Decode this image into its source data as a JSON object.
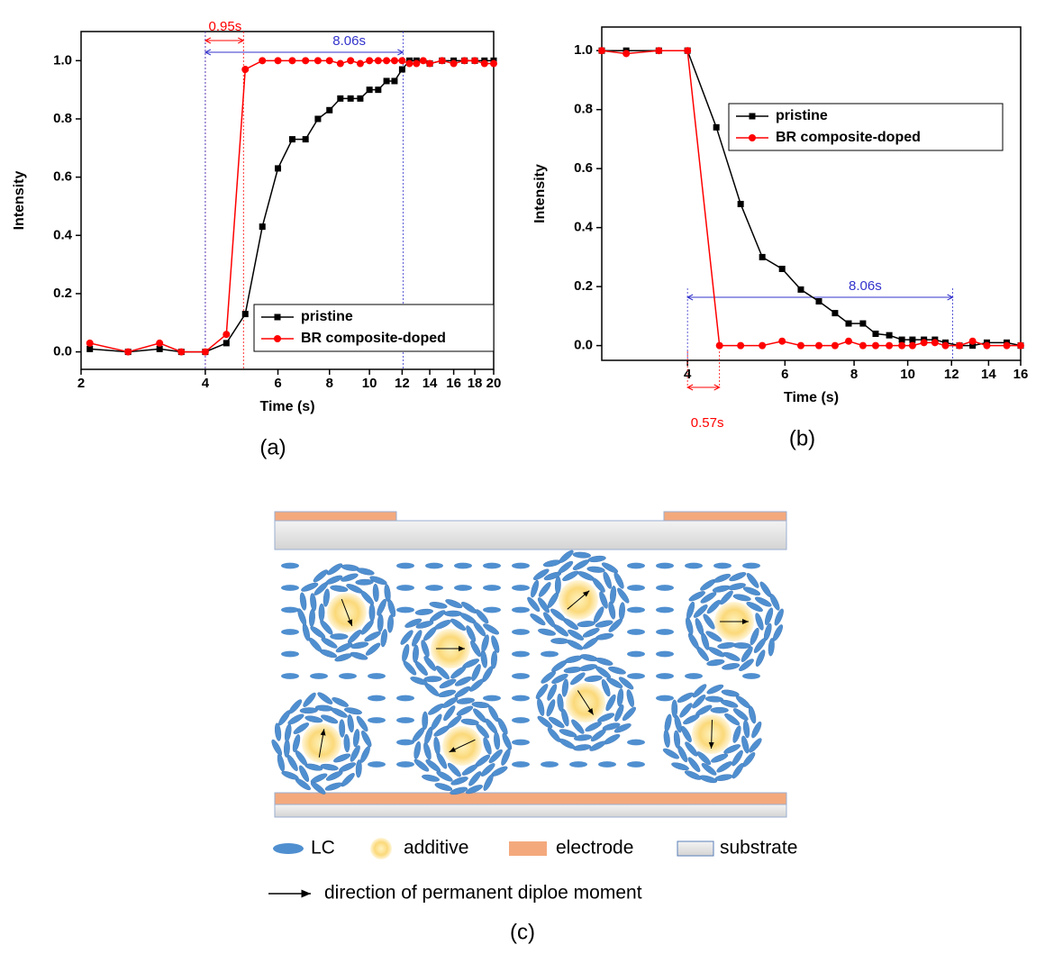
{
  "chart_data": [
    {
      "type": "line",
      "caption": "(a)",
      "xlabel": "Time (s)",
      "ylabel": "Intensity",
      "xscale": "log",
      "xlim": [
        2,
        20
      ],
      "xticks": [
        2,
        4,
        6,
        8,
        10,
        12,
        14,
        16,
        18,
        20
      ],
      "ylim": [
        -0.06,
        1.1
      ],
      "yticks": [
        {
          "value": 0,
          "label": "0.0"
        },
        0.2,
        0.4,
        0.6,
        0.8,
        {
          "value": 1,
          "label": "1.0"
        }
      ],
      "legend": "lower right",
      "series": [
        {
          "name": "pristine",
          "color": "#000000",
          "marker": "square",
          "x": [
            2.1,
            2.6,
            3.1,
            3.5,
            4,
            4.5,
            5,
            5.5,
            6,
            6.5,
            7,
            7.5,
            8,
            8.5,
            9,
            9.5,
            10,
            10.5,
            11,
            11.5,
            12,
            12.5,
            13,
            14,
            15,
            16,
            17,
            18,
            19,
            20
          ],
          "values": [
            0.01,
            0,
            0.01,
            0,
            0,
            0.03,
            0.13,
            0.43,
            0.63,
            0.73,
            0.73,
            0.8,
            0.83,
            0.87,
            0.87,
            0.87,
            0.9,
            0.9,
            0.93,
            0.93,
            0.97,
            1,
            1,
            0.99,
            1,
            1,
            1,
            1,
            1,
            1
          ]
        },
        {
          "name": "BR composite-doped",
          "color": "#ff0000",
          "marker": "circle",
          "x": [
            2.1,
            2.6,
            3.1,
            3.5,
            4,
            4.5,
            5,
            5.5,
            6,
            6.5,
            7,
            7.5,
            8,
            8.5,
            9,
            9.5,
            10,
            10.5,
            11,
            11.5,
            12,
            12.5,
            13,
            13.5,
            14,
            15,
            16,
            17,
            18,
            19,
            20
          ],
          "values": [
            0.03,
            0,
            0.03,
            0,
            0,
            0.06,
            0.97,
            1,
            1,
            1,
            1,
            1,
            1,
            0.99,
            1,
            0.99,
            1,
            1,
            1,
            1,
            1,
            0.99,
            0.99,
            1,
            0.99,
            1,
            0.99,
            1,
            1,
            0.99,
            0.99
          ]
        }
      ],
      "annotations": [
        {
          "text": "0.95s",
          "color": "#ff0000",
          "from": 4,
          "to": 4.95
        },
        {
          "text": "8.06s",
          "color": "#3333cc",
          "from": 4,
          "to": 12.06
        }
      ]
    },
    {
      "type": "line",
      "caption": "(b)",
      "xlabel": "Time (s)",
      "ylabel": "Intensity",
      "xscale": "log",
      "xlim": [
        2.8,
        16
      ],
      "xticks": [
        4,
        6,
        8,
        10,
        12,
        14,
        16
      ],
      "ylim": [
        -0.05,
        1.08
      ],
      "yticks": [
        {
          "value": 0,
          "label": "0.0"
        },
        0.2,
        0.4,
        0.6,
        0.8,
        {
          "value": 1,
          "label": "1.0"
        }
      ],
      "legend": "upper right",
      "series": [
        {
          "name": "pristine",
          "color": "#000000",
          "marker": "square",
          "x": [
            2.8,
            3.1,
            3.55,
            4,
            4.51,
            4.99,
            5.46,
            5.93,
            6.41,
            6.91,
            7.39,
            7.82,
            8.3,
            8.75,
            9.26,
            9.76,
            10.2,
            10.7,
            11.2,
            11.7,
            12.4,
            13.1,
            13.9,
            15.1,
            16
          ],
          "values": [
            1,
            1,
            1,
            1,
            0.74,
            0.48,
            0.3,
            0.26,
            0.19,
            0.15,
            0.11,
            0.075,
            0.075,
            0.04,
            0.035,
            0.02,
            0.02,
            0.02,
            0.02,
            0.01,
            0,
            0,
            0.01,
            0.01,
            0
          ]
        },
        {
          "name": "BR composite-doped",
          "color": "#ff0000",
          "marker": "circle",
          "x": [
            2.8,
            3.1,
            3.55,
            4,
            4.57,
            4.99,
            5.46,
            5.93,
            6.41,
            6.91,
            7.39,
            7.82,
            8.3,
            8.75,
            9.26,
            9.76,
            10.2,
            10.7,
            11.2,
            11.7,
            12.4,
            13.1,
            13.9,
            15.1,
            16
          ],
          "values": [
            1,
            0.99,
            1,
            1,
            0,
            0,
            0,
            0.015,
            0,
            0,
            0,
            0.015,
            0,
            0,
            0,
            0,
            0,
            0.01,
            0.01,
            0,
            0,
            0.015,
            0,
            0,
            0
          ]
        }
      ],
      "annotations": [
        {
          "text": "8.06s",
          "color": "#3333cc",
          "from": 4,
          "to": 12.06
        },
        {
          "text": "0.57s",
          "color": "#ff0000",
          "from": 4,
          "to": 4.57
        }
      ]
    }
  ],
  "diagram": {
    "caption": "(c)",
    "legend": [
      "LC",
      "additive",
      "electrode",
      "substrate",
      "direction of permanent diploe moment"
    ]
  }
}
